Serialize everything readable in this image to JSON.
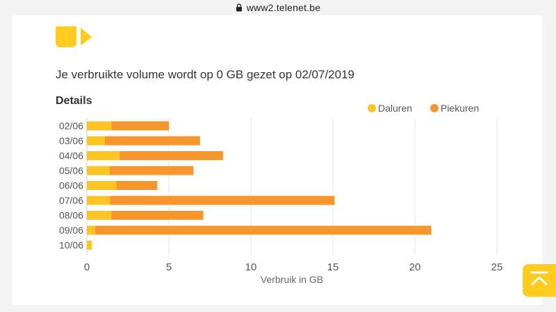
{
  "browser": {
    "url": "www2.telenet.be"
  },
  "usage": {
    "reset_text": "Je verbruikte volume wordt op 0 GB gezet op 02/07/2019"
  },
  "details": {
    "heading": "Details"
  },
  "colors": {
    "daluren": "#fdc425",
    "piekuren": "#f7962d",
    "brand_yellow": "#fecb1e"
  },
  "icons": {
    "lock": "lock-icon",
    "scroll_top": "scroll-to-top-icon",
    "logo": "telenet-logo"
  },
  "chart_data": {
    "type": "bar",
    "orientation": "horizontal",
    "stacked": true,
    "categories": [
      "02/06",
      "03/06",
      "04/06",
      "05/06",
      "06/06",
      "07/06",
      "08/06",
      "09/06",
      "10/06"
    ],
    "series": [
      {
        "name": "Daluren",
        "color": "#fdc425",
        "values": [
          1.5,
          1.1,
          2.0,
          1.4,
          1.8,
          1.4,
          1.5,
          0.5,
          0.3
        ]
      },
      {
        "name": "Piekuren",
        "color": "#f7962d",
        "values": [
          3.5,
          5.8,
          6.3,
          5.1,
          2.5,
          13.7,
          5.6,
          20.5,
          0
        ]
      }
    ],
    "xlabel": "Verbruik in GB",
    "xlim": [
      0,
      25
    ],
    "xticks": [
      0,
      5,
      10,
      15,
      20,
      25
    ],
    "grid": true,
    "legend_position": "top-right"
  }
}
